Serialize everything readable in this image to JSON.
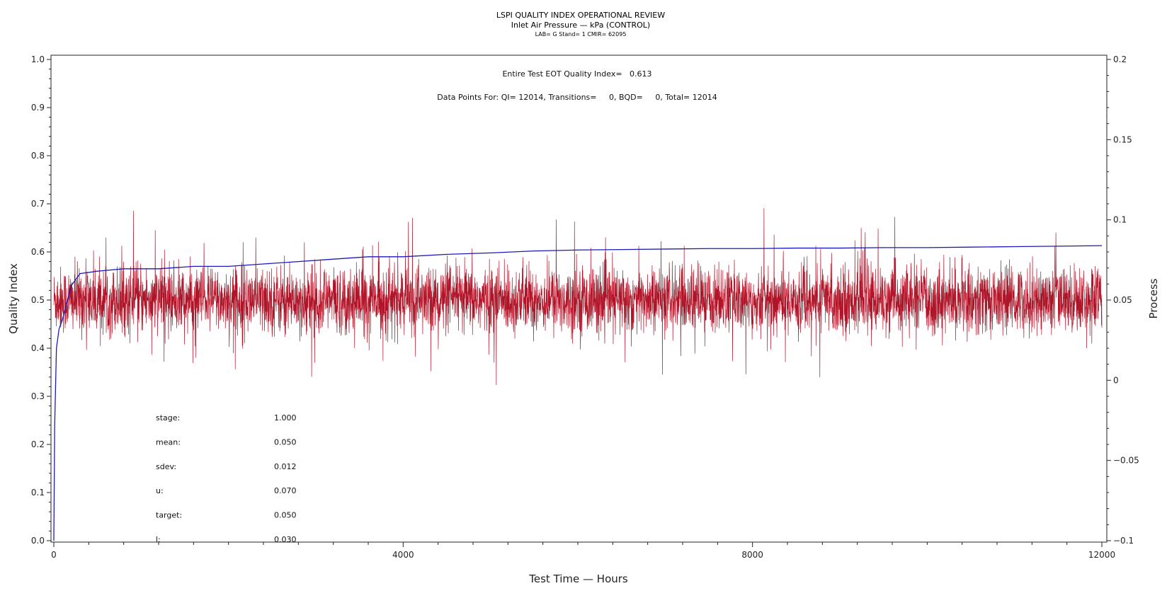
{
  "chart_data": {
    "type": "line",
    "title": "LSPI QUALITY INDEX OPERATIONAL REVIEW",
    "subtitle": "Inlet Air Pressure — kPa (CONTROL)",
    "subtitle2": "LAB= G Stand= 1 CMIR= 62095",
    "xlabel": "Test Time — Hours",
    "ylabel": "Quality Index",
    "y2label": "Process",
    "xlim": [
      0,
      12000
    ],
    "ylim": [
      0,
      1.0
    ],
    "y2lim": [
      -0.1,
      0.2
    ],
    "x_ticks": [
      "0",
      "4000",
      "8000",
      "12000"
    ],
    "y_ticks": [
      "0.0",
      "0.1",
      "0.2",
      "0.3",
      "0.4",
      "0.5",
      "0.6",
      "0.7",
      "0.8",
      "0.9",
      "1.0"
    ],
    "y2_ticks": [
      "−0.1",
      "−0.05",
      "0",
      "0.05",
      "0.1",
      "0.15",
      "0.2"
    ],
    "annotations": {
      "qi_line": "Entire Test EOT Quality Index=   0.613",
      "points_line": "Data Points For: QI= 12014, Transitions=     0, BQD=     0, Total= 12014"
    },
    "stats": [
      {
        "label": "stage:",
        "value": "1.000"
      },
      {
        "label": "mean:",
        "value": "0.050"
      },
      {
        "label": "sdev:",
        "value": "0.012"
      },
      {
        "label": "u:",
        "value": "0.070"
      },
      {
        "label": "target:",
        "value": "0.050"
      },
      {
        "label": "l:",
        "value": "0.030"
      }
    ],
    "series": [
      {
        "role": "quality_index",
        "axis": "left",
        "color": "#1a1ab8",
        "points": [
          [
            0,
            0.0
          ],
          [
            10,
            0.24
          ],
          [
            30,
            0.4
          ],
          [
            60,
            0.44
          ],
          [
            100,
            0.46
          ],
          [
            200,
            0.53
          ],
          [
            300,
            0.555
          ],
          [
            500,
            0.56
          ],
          [
            800,
            0.565
          ],
          [
            1200,
            0.565
          ],
          [
            1600,
            0.57
          ],
          [
            2000,
            0.57
          ],
          [
            2400,
            0.575
          ],
          [
            2800,
            0.58
          ],
          [
            3200,
            0.585
          ],
          [
            3600,
            0.59
          ],
          [
            4000,
            0.59
          ],
          [
            4500,
            0.595
          ],
          [
            5000,
            0.598
          ],
          [
            5500,
            0.602
          ],
          [
            6000,
            0.604
          ],
          [
            6500,
            0.605
          ],
          [
            7000,
            0.606
          ],
          [
            7500,
            0.607
          ],
          [
            8000,
            0.607
          ],
          [
            8500,
            0.608
          ],
          [
            9000,
            0.608
          ],
          [
            9500,
            0.609
          ],
          [
            10000,
            0.609
          ],
          [
            10500,
            0.61
          ],
          [
            11000,
            0.611
          ],
          [
            11500,
            0.612
          ],
          [
            12000,
            0.613
          ]
        ]
      },
      {
        "role": "process",
        "axis": "right",
        "color": "#b01428",
        "mean": 0.05,
        "sdev": 0.012,
        "n": 12014,
        "range": [
          0.0,
          12000
        ]
      }
    ],
    "grid": false
  }
}
